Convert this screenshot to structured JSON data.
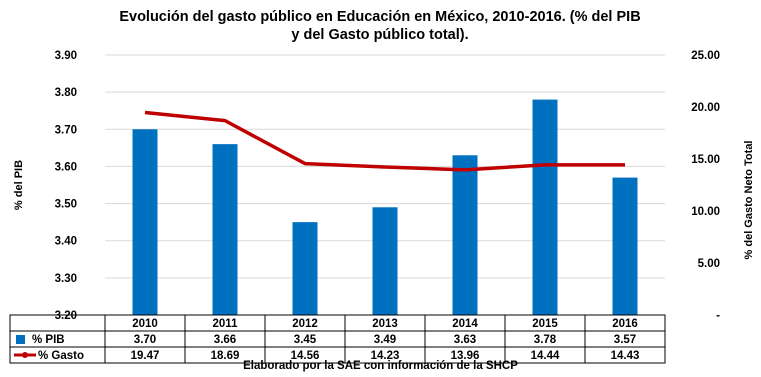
{
  "chart_data": {
    "type": "bar",
    "title_line1": "Evolución del gasto público en Educación en México, 2010-2016. (% del PIB",
    "title_line2": "y del Gasto público total).",
    "categories": [
      "2010",
      "2011",
      "2012",
      "2013",
      "2014",
      "2015",
      "2016"
    ],
    "series": [
      {
        "name": "% PIB",
        "type": "bar",
        "axis": "left",
        "color": "#0070C0",
        "values": [
          3.7,
          3.66,
          3.45,
          3.49,
          3.63,
          3.78,
          3.57
        ],
        "labels": [
          "3.70",
          "3.66",
          "3.45",
          "3.49",
          "3.63",
          "3.78",
          "3.57"
        ]
      },
      {
        "name": "% Gasto",
        "type": "line",
        "axis": "right",
        "color": "#C00000",
        "values": [
          19.47,
          18.69,
          14.56,
          14.23,
          13.96,
          14.44,
          14.43
        ],
        "labels": [
          "19.47",
          "18.69",
          "14.56",
          "14.23",
          "13.96",
          "14.44",
          "14.43"
        ]
      }
    ],
    "ylabel_left": "% del PIB",
    "ylabel_right": "% del Gasto Neto Total",
    "ylim_left": [
      3.2,
      3.9
    ],
    "yticks_left": [
      "3.20",
      "3.30",
      "3.40",
      "3.50",
      "3.60",
      "3.70",
      "3.80",
      "3.90"
    ],
    "ylim_right": [
      0,
      25
    ],
    "yticks_right": [
      "-",
      "5.00",
      "10.00",
      "15.00",
      "20.00",
      "25.00"
    ],
    "grid": true,
    "legend": "data-table",
    "note": "Elaborado por la SAE con información de la SHCP"
  }
}
